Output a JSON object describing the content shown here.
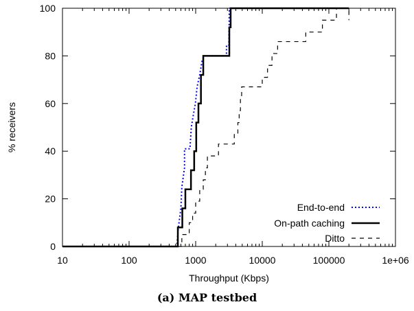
{
  "chart_data": {
    "type": "line",
    "caption": "(a) MAP testbed",
    "xlabel": "Throughput (Kbps)",
    "ylabel": "% receivers",
    "x_scale": "log",
    "xlim": [
      10,
      1000000
    ],
    "ylim": [
      0,
      100
    ],
    "x_ticks": [
      10,
      100,
      1000,
      10000,
      100000,
      1000000
    ],
    "x_tick_labels": [
      "10",
      "100",
      "1000",
      "10000",
      "100000",
      "1e+06"
    ],
    "y_ticks": [
      0,
      20,
      40,
      60,
      80,
      100
    ],
    "y_tick_labels": [
      "0",
      "20",
      "40",
      "60",
      "80",
      "100"
    ],
    "grid": false,
    "legend_position": "bottom-right",
    "series": [
      {
        "name": "End-to-end",
        "style": "dotted",
        "color": "#0000ff",
        "points": [
          [
            10,
            0
          ],
          [
            520,
            0
          ],
          [
            550,
            8
          ],
          [
            600,
            16
          ],
          [
            620,
            25
          ],
          [
            680,
            33
          ],
          [
            680,
            41
          ],
          [
            820,
            41
          ],
          [
            860,
            50
          ],
          [
            920,
            55
          ],
          [
            990,
            60
          ],
          [
            1050,
            67
          ],
          [
            1150,
            72
          ],
          [
            1250,
            78
          ],
          [
            1350,
            80
          ],
          [
            2900,
            80
          ],
          [
            2900,
            84
          ],
          [
            3150,
            84
          ],
          [
            3200,
            100
          ],
          [
            200000,
            100
          ]
        ]
      },
      {
        "name": "On-path caching",
        "style": "solid",
        "color": "#000000",
        "points": [
          [
            10,
            0
          ],
          [
            540,
            0
          ],
          [
            540,
            8
          ],
          [
            630,
            8
          ],
          [
            630,
            16
          ],
          [
            700,
            16
          ],
          [
            700,
            24
          ],
          [
            850,
            24
          ],
          [
            850,
            32
          ],
          [
            950,
            32
          ],
          [
            950,
            40
          ],
          [
            1020,
            40
          ],
          [
            1020,
            52
          ],
          [
            1100,
            52
          ],
          [
            1100,
            60
          ],
          [
            1200,
            60
          ],
          [
            1200,
            72
          ],
          [
            1300,
            72
          ],
          [
            1300,
            80
          ],
          [
            3200,
            80
          ],
          [
            3200,
            92
          ],
          [
            3350,
            92
          ],
          [
            3350,
            100
          ],
          [
            200000,
            100
          ]
        ]
      },
      {
        "name": "Ditto",
        "style": "dashed",
        "color": "#000000",
        "points": [
          [
            10,
            0
          ],
          [
            620,
            0
          ],
          [
            620,
            5
          ],
          [
            800,
            5
          ],
          [
            800,
            10
          ],
          [
            900,
            10
          ],
          [
            900,
            14
          ],
          [
            1000,
            14
          ],
          [
            1000,
            19
          ],
          [
            1150,
            19
          ],
          [
            1150,
            24
          ],
          [
            1300,
            24
          ],
          [
            1300,
            28
          ],
          [
            1400,
            28
          ],
          [
            1400,
            33
          ],
          [
            1500,
            33
          ],
          [
            1500,
            38
          ],
          [
            2200,
            38
          ],
          [
            2200,
            43
          ],
          [
            3800,
            43
          ],
          [
            3800,
            47
          ],
          [
            4300,
            47
          ],
          [
            4300,
            52
          ],
          [
            4500,
            52
          ],
          [
            4500,
            57
          ],
          [
            4700,
            57
          ],
          [
            4700,
            62
          ],
          [
            4900,
            62
          ],
          [
            4900,
            67
          ],
          [
            10000,
            67
          ],
          [
            10000,
            71
          ],
          [
            12000,
            71
          ],
          [
            12000,
            76
          ],
          [
            14000,
            76
          ],
          [
            14000,
            81
          ],
          [
            17000,
            81
          ],
          [
            17000,
            86
          ],
          [
            45000,
            86
          ],
          [
            45000,
            90
          ],
          [
            80000,
            90
          ],
          [
            80000,
            95
          ],
          [
            130000,
            95
          ],
          [
            130000,
            100
          ],
          [
            200000,
            100
          ],
          [
            200000,
            95
          ]
        ]
      }
    ]
  }
}
